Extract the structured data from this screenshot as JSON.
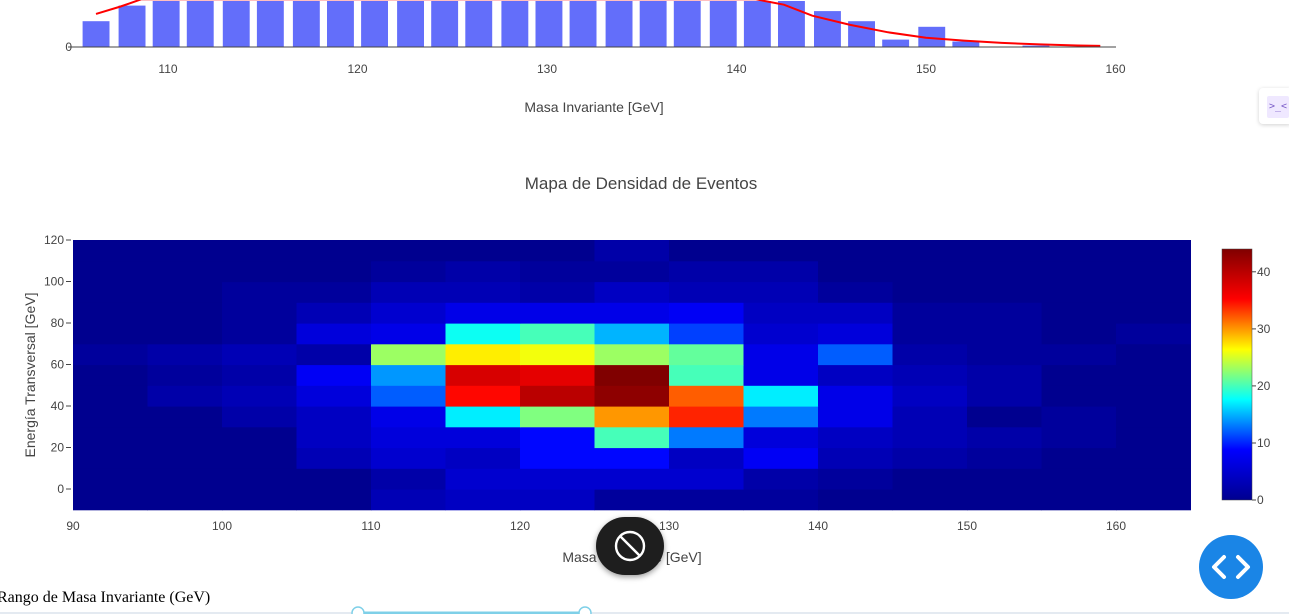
{
  "chart_data": [
    {
      "type": "bar",
      "title": "",
      "xlabel": "Masa Invariante [GeV]",
      "ylabel": "",
      "xlim": [
        105,
        160
      ],
      "x_ticks": [
        110,
        120,
        130,
        140,
        150,
        160
      ],
      "y_ticks_visible": [
        0
      ],
      "bar_color": "#636efa",
      "bin_width": 1.84,
      "bins": [
        {
          "x": 106.2,
          "v": 28
        },
        {
          "x": 108.1,
          "v": 45
        },
        {
          "x": 109.9,
          "v": 50
        },
        {
          "x": 111.7,
          "v": 50
        },
        {
          "x": 113.6,
          "v": 50
        },
        {
          "x": 115.4,
          "v": 50
        },
        {
          "x": 117.3,
          "v": 50
        },
        {
          "x": 119.1,
          "v": 50
        },
        {
          "x": 120.9,
          "v": 50
        },
        {
          "x": 122.8,
          "v": 50
        },
        {
          "x": 124.6,
          "v": 50
        },
        {
          "x": 126.4,
          "v": 50
        },
        {
          "x": 128.3,
          "v": 50
        },
        {
          "x": 130.1,
          "v": 50
        },
        {
          "x": 131.9,
          "v": 50
        },
        {
          "x": 133.8,
          "v": 50
        },
        {
          "x": 135.6,
          "v": 50
        },
        {
          "x": 137.4,
          "v": 50
        },
        {
          "x": 139.3,
          "v": 50
        },
        {
          "x": 141.1,
          "v": 50
        },
        {
          "x": 142.9,
          "v": 50
        },
        {
          "x": 144.8,
          "v": 39
        },
        {
          "x": 146.6,
          "v": 28
        },
        {
          "x": 148.4,
          "v": 8
        },
        {
          "x": 150.3,
          "v": 22
        },
        {
          "x": 152.1,
          "v": 6
        },
        {
          "x": 155.8,
          "v": 1.5
        }
      ],
      "fit_line": {
        "color": "#ff0000",
        "points": [
          [
            106.2,
            36
          ],
          [
            107.5,
            44
          ],
          [
            108.6,
            52
          ],
          [
            141.0,
            52
          ],
          [
            142.5,
            46
          ],
          [
            144.0,
            34
          ],
          [
            146.0,
            24
          ],
          [
            148.0,
            16
          ],
          [
            150.0,
            10
          ],
          [
            152.0,
            7
          ],
          [
            154.0,
            4.5
          ],
          [
            156.0,
            2.8
          ],
          [
            158.0,
            1.6
          ],
          [
            159.2,
            1.2
          ]
        ]
      },
      "y_max_visible": 50
    },
    {
      "type": "heatmap",
      "title": "Mapa de Densidad de Eventos",
      "xlabel": "Masa Invariante [GeV]",
      "ylabel": "Energía Transversal [GeV]",
      "xlim": [
        90,
        165
      ],
      "ylim": [
        -10,
        120
      ],
      "x_ticks": [
        90,
        100,
        110,
        120,
        130,
        140,
        150,
        160
      ],
      "y_ticks": [
        0,
        20,
        40,
        60,
        80,
        100,
        120
      ],
      "x_edges": [
        90,
        95,
        100,
        105,
        110,
        115,
        120,
        125,
        130,
        135,
        140,
        145,
        150,
        155,
        160,
        165
      ],
      "y_edges": [
        -10,
        0,
        10,
        20,
        30,
        40,
        50,
        60,
        70,
        80,
        90,
        100,
        110,
        120
      ],
      "zmin": 0,
      "zmax": 44,
      "colorbar_ticks": [
        0,
        10,
        20,
        30,
        40
      ],
      "colorscale": [
        "#00008f",
        "#0000ff",
        "#00ffff",
        "#ffff00",
        "#ff0000",
        "#800000"
      ],
      "z": [
        [
          0,
          0,
          0,
          0,
          3,
          4,
          4,
          1,
          1,
          1,
          0,
          0,
          0,
          0,
          0
        ],
        [
          0,
          0,
          0,
          0,
          2,
          5,
          5,
          5,
          5,
          2,
          1,
          0,
          0,
          0,
          0
        ],
        [
          0,
          0,
          0,
          3,
          5,
          4,
          9,
          9,
          4,
          8,
          3,
          2,
          1,
          0,
          0
        ],
        [
          0,
          0,
          0,
          4,
          6,
          6,
          9,
          20,
          13,
          6,
          4,
          3,
          2,
          1,
          0
        ],
        [
          0,
          0,
          2,
          4,
          7,
          17,
          22,
          30,
          34,
          13,
          7,
          3,
          0,
          1,
          0
        ],
        [
          0,
          2,
          3,
          6,
          12,
          35,
          40,
          43,
          32,
          17,
          7,
          4,
          2,
          0,
          0
        ],
        [
          0,
          1,
          2,
          8,
          14,
          38,
          37,
          44,
          20,
          7,
          4,
          3,
          2,
          0,
          0
        ],
        [
          1,
          2,
          3,
          2,
          23,
          27,
          26,
          23,
          21,
          7,
          12,
          2,
          1,
          1,
          0
        ],
        [
          0,
          0,
          1,
          6,
          7,
          18,
          20,
          15,
          11,
          5,
          6,
          1,
          1,
          0,
          1
        ],
        [
          0,
          0,
          1,
          3,
          5,
          7,
          7,
          7,
          8,
          4,
          4,
          1,
          1,
          0,
          0
        ],
        [
          0,
          0,
          1,
          1,
          3,
          3,
          2,
          4,
          3,
          3,
          1,
          0,
          0,
          0,
          0
        ],
        [
          0,
          0,
          0,
          0,
          1,
          2,
          1,
          1,
          2,
          2,
          0,
          0,
          0,
          0,
          0
        ],
        [
          0,
          0,
          0,
          0,
          0,
          0,
          0,
          2,
          0,
          0,
          0,
          0,
          0,
          0,
          0
        ]
      ]
    }
  ],
  "controls": {
    "slider_label": "Rango de Masa Invariante (GeV)",
    "side_tab_icon": "terminal-collapse-icon",
    "stop_button_icon": "block-icon",
    "code_button_icon": "code-brackets-icon"
  }
}
